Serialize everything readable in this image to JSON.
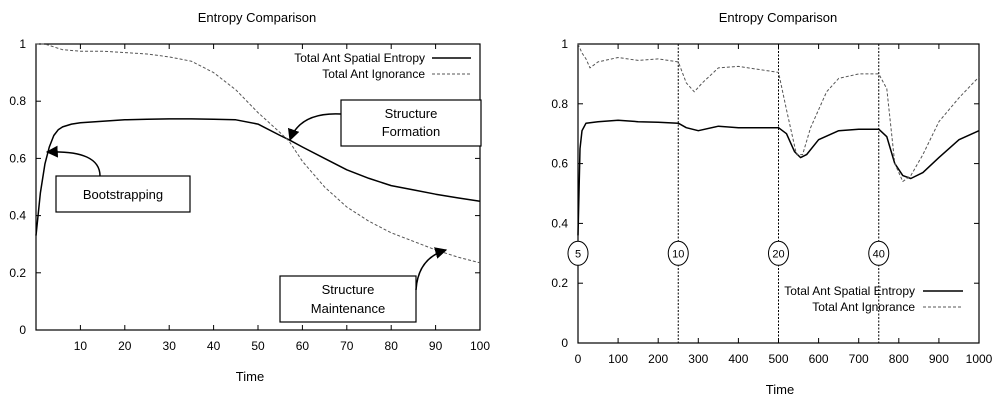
{
  "chart_data": [
    {
      "type": "line",
      "title": "Entropy Comparison",
      "xlabel": "Time",
      "ylabel": "",
      "xlim": [
        0,
        100
      ],
      "ylim": [
        0,
        1
      ],
      "xticks": [
        "10",
        "20",
        "30",
        "40",
        "50",
        "60",
        "70",
        "80",
        "90",
        "100"
      ],
      "yticks": [
        "0",
        "0.2",
        "0.4",
        "0.6",
        "0.8",
        "1"
      ],
      "grid": false,
      "legend_position": "top-right",
      "series": [
        {
          "name": "Total Ant Spatial Entropy",
          "style": "solid",
          "x": [
            0,
            1,
            2,
            3,
            4,
            5,
            6,
            8,
            10,
            15,
            20,
            25,
            30,
            35,
            40,
            45,
            50,
            55,
            57,
            60,
            65,
            70,
            75,
            80,
            85,
            90,
            95,
            100
          ],
          "y": [
            0.33,
            0.48,
            0.58,
            0.64,
            0.68,
            0.7,
            0.71,
            0.72,
            0.725,
            0.73,
            0.735,
            0.737,
            0.738,
            0.738,
            0.737,
            0.735,
            0.72,
            0.68,
            0.665,
            0.64,
            0.6,
            0.56,
            0.53,
            0.505,
            0.49,
            0.475,
            0.462,
            0.45
          ]
        },
        {
          "name": "Total Ant Ignorance",
          "style": "dashed",
          "x": [
            0,
            2,
            4,
            6,
            10,
            15,
            20,
            25,
            30,
            35,
            40,
            45,
            50,
            55,
            57,
            60,
            65,
            70,
            75,
            80,
            85,
            90,
            95,
            100
          ],
          "y": [
            1.0,
            1.0,
            0.99,
            0.98,
            0.975,
            0.975,
            0.97,
            0.965,
            0.955,
            0.94,
            0.9,
            0.84,
            0.76,
            0.69,
            0.66,
            0.59,
            0.5,
            0.43,
            0.38,
            0.34,
            0.31,
            0.28,
            0.255,
            0.235
          ]
        }
      ],
      "annotations": [
        {
          "text": "Bootstrapping",
          "target": [
            3,
            0.61
          ]
        },
        {
          "text": "Structure Formation",
          "lines": [
            "Structure",
            "Formation"
          ],
          "target": [
            57,
            0.665
          ]
        },
        {
          "text": "Structure Maintenance",
          "lines": [
            "Structure",
            "Maintenance"
          ],
          "target": [
            92,
            0.27
          ]
        }
      ]
    },
    {
      "type": "line",
      "title": "Entropy Comparison",
      "xlabel": "Time",
      "ylabel": "",
      "xlim": [
        0,
        1000
      ],
      "ylim": [
        0,
        1
      ],
      "xticks": [
        "0",
        "100",
        "200",
        "300",
        "400",
        "500",
        "600",
        "700",
        "800",
        "900",
        "1000"
      ],
      "yticks": [
        "0",
        "0.2",
        "0.4",
        "0.6",
        "0.8",
        "1"
      ],
      "grid": false,
      "legend_position": "bottom-right",
      "vertical_markers": [
        {
          "x": 0,
          "label": "5"
        },
        {
          "x": 250,
          "label": "10"
        },
        {
          "x": 500,
          "label": "20"
        },
        {
          "x": 750,
          "label": "40"
        }
      ],
      "series": [
        {
          "name": "Total Ant Spatial Entropy",
          "style": "solid",
          "x": [
            0,
            5,
            10,
            20,
            50,
            100,
            150,
            200,
            250,
            270,
            300,
            350,
            400,
            450,
            500,
            520,
            540,
            555,
            570,
            600,
            650,
            700,
            750,
            770,
            790,
            810,
            830,
            860,
            900,
            950,
            1000
          ],
          "y": [
            0.36,
            0.65,
            0.71,
            0.735,
            0.74,
            0.745,
            0.74,
            0.738,
            0.735,
            0.72,
            0.71,
            0.725,
            0.72,
            0.72,
            0.72,
            0.7,
            0.64,
            0.62,
            0.63,
            0.68,
            0.71,
            0.715,
            0.715,
            0.69,
            0.6,
            0.56,
            0.55,
            0.57,
            0.62,
            0.68,
            0.71
          ]
        },
        {
          "name": "Total Ant Ignorance",
          "style": "dashed",
          "x": [
            0,
            10,
            20,
            30,
            50,
            100,
            150,
            200,
            250,
            270,
            290,
            310,
            350,
            400,
            450,
            500,
            520,
            545,
            560,
            580,
            620,
            650,
            700,
            750,
            770,
            790,
            810,
            830,
            860,
            900,
            950,
            1000
          ],
          "y": [
            1.0,
            0.97,
            0.95,
            0.92,
            0.94,
            0.955,
            0.945,
            0.95,
            0.94,
            0.87,
            0.84,
            0.87,
            0.92,
            0.925,
            0.915,
            0.905,
            0.78,
            0.63,
            0.63,
            0.72,
            0.84,
            0.885,
            0.9,
            0.9,
            0.85,
            0.6,
            0.54,
            0.56,
            0.63,
            0.74,
            0.82,
            0.89
          ]
        }
      ]
    }
  ]
}
